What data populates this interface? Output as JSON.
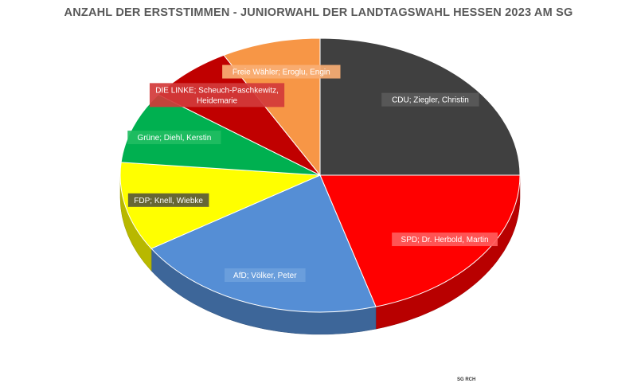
{
  "title": "ANZAHL DER ERSTSTIMMEN - JUNIORWAHL DER LANDTAGSWAHL HESSEN 2023 AM SG",
  "footer": "SG RCH",
  "chart_data": {
    "type": "pie",
    "title": "ANZAHL DER ERSTSTIMMEN - JUNIORWAHL DER LANDTAGSWAHL HESSEN 2023 AM SG",
    "legend": "none",
    "slices": [
      {
        "label": "CDU; Ziegler, Christin",
        "value": 25,
        "color": "#404040",
        "label_bg": "#595959"
      },
      {
        "label": "SPD; Dr. Herbold, Martin",
        "value": 20.5,
        "color": "#ff0000",
        "label_bg": "#ff5b5b"
      },
      {
        "label": "AfD; Völker, Peter",
        "value": 20.5,
        "color": "#558ed5",
        "label_bg": "#6c9fdc"
      },
      {
        "label": "FDP; Knell, Wiebke",
        "value": 10.5,
        "color": "#ffff00",
        "label_bg": "#5a5a3a"
      },
      {
        "label": "Grüne; Diehl, Kerstin",
        "value": 8.5,
        "color": "#00b050",
        "label_bg": "#1fbd62"
      },
      {
        "label": "DIE LINKE; Scheuch-Paschkewitz, Heidemarie",
        "value": 7,
        "color": "#c00000",
        "label_bg": "#d23a3a"
      },
      {
        "label": "Freie Wähler; Eroglu, Engin",
        "value": 8,
        "color": "#f79646",
        "label_bg": "#f9ae74"
      }
    ]
  }
}
